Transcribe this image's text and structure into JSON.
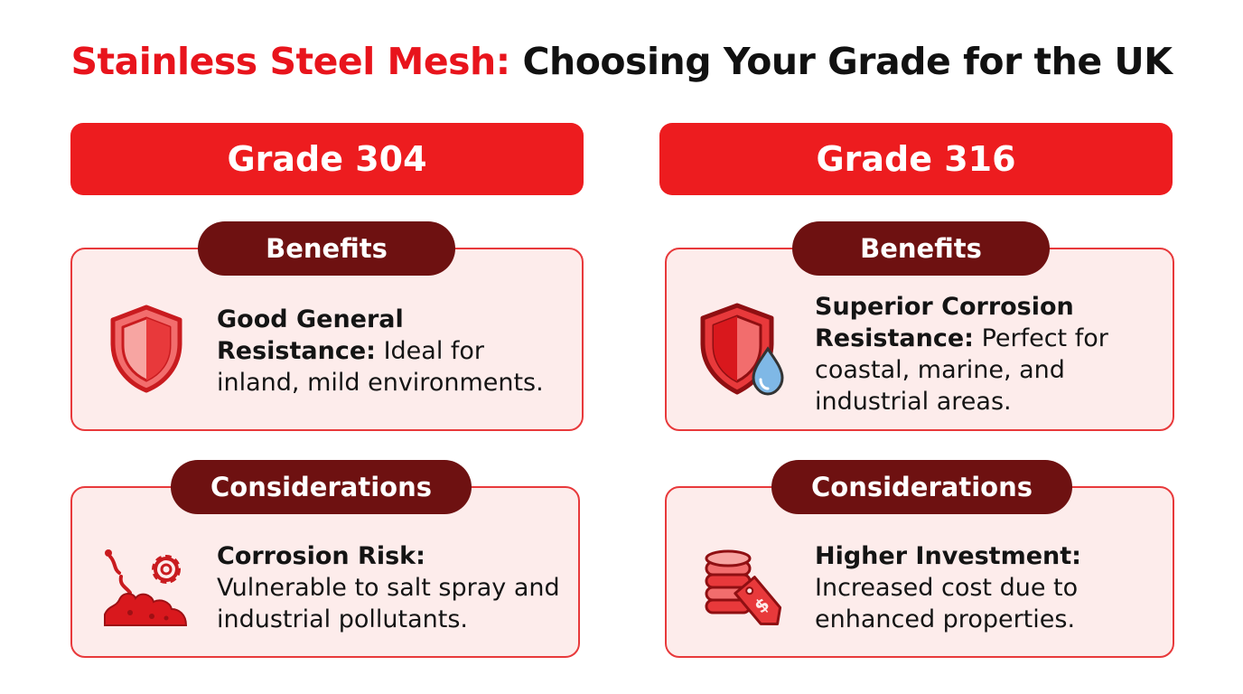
{
  "title": {
    "accent": "Stainless Steel Mesh:",
    "rest": "Choosing Your Grade for the UK"
  },
  "colors": {
    "accent_red": "#ed1c1f",
    "dark_maroon": "#6e1111",
    "card_fill": "#fdeceb",
    "card_border": "#e8393b"
  },
  "grades": [
    {
      "name": "Grade 304",
      "benefits": {
        "label": "Benefits",
        "icon": "shield-icon",
        "heading": "Good General Resistance:",
        "body": "Ideal for inland, mild environments."
      },
      "considerations": {
        "label": "Considerations",
        "icon": "corrosion-gear-icon",
        "heading": "Corrosion Risk:",
        "body": "Vulnerable to salt spray and industrial pollutants."
      }
    },
    {
      "name": "Grade 316",
      "benefits": {
        "label": "Benefits",
        "icon": "shield-droplet-icon",
        "heading": "Superior Corrosion Resistance:",
        "body": "Perfect for coastal, marine, and industrial areas."
      },
      "considerations": {
        "label": "Considerations",
        "icon": "coins-price-tag-icon",
        "heading": "Higher Investment:",
        "body": "Increased cost due to enhanced properties."
      }
    }
  ]
}
